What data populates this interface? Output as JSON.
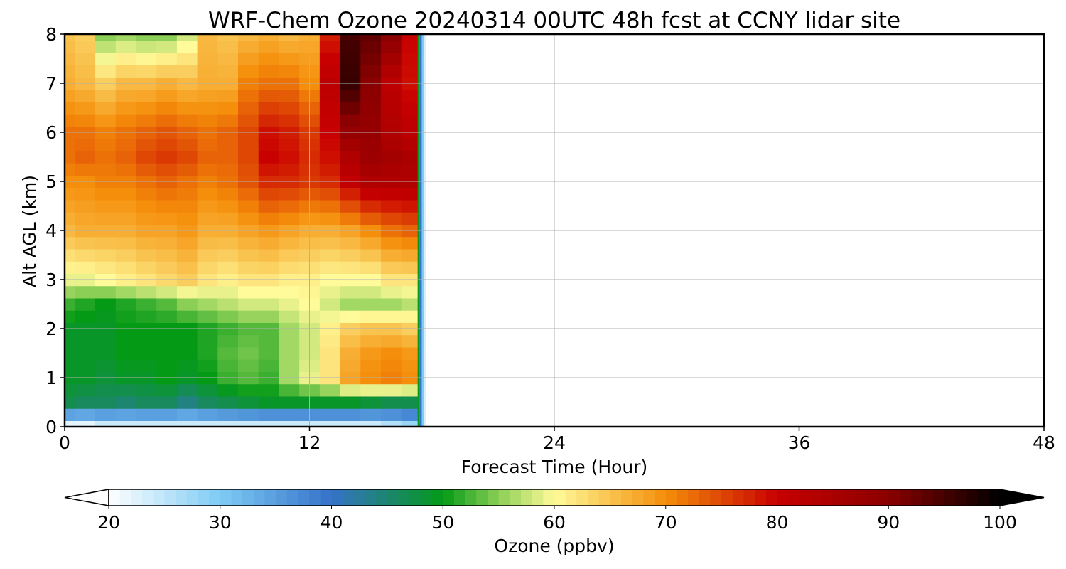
{
  "chart_data": {
    "type": "heatmap",
    "title": "WRF-Chem Ozone  20240314 00UTC 48h fcst at CCNY lidar site",
    "xlabel": "Forecast Time (Hour)",
    "ylabel": "Alt AGL (km)",
    "xlim": [
      0,
      48
    ],
    "ylim": [
      0,
      8
    ],
    "x_ticks": [
      0,
      12,
      24,
      36,
      48
    ],
    "y_ticks": [
      0,
      1,
      2,
      3,
      4,
      5,
      6,
      7,
      8
    ],
    "grid": true,
    "data_extent_hours": [
      0,
      17.3
    ],
    "x": [
      0,
      1,
      2,
      3,
      4,
      5,
      6,
      7,
      8,
      9,
      10,
      11,
      12,
      13,
      14,
      15,
      16,
      17
    ],
    "y": [
      0,
      0.25,
      0.5,
      0.75,
      1,
      1.25,
      1.5,
      1.75,
      2,
      2.25,
      2.5,
      2.75,
      3,
      3.25,
      3.5,
      3.75,
      4,
      4.25,
      4.5,
      4.75,
      5,
      5.25,
      5.5,
      5.75,
      6,
      6.25,
      6.5,
      6.75,
      7,
      7.25,
      7.5,
      7.75,
      8
    ],
    "z_approx_ppbv": {
      "0km": [
        22,
        22,
        24,
        24,
        24,
        24,
        24,
        24,
        24,
        24,
        24,
        24,
        24,
        24,
        24,
        24,
        26,
        28
      ],
      "0.5km": [
        47,
        46,
        46,
        45,
        46,
        46,
        44,
        46,
        47,
        48,
        49,
        49,
        49,
        49,
        49,
        48,
        47,
        47
      ],
      "1km": [
        49,
        49,
        48,
        49,
        49,
        50,
        49,
        50,
        52,
        53,
        52,
        56,
        59,
        62,
        68,
        70,
        71,
        70
      ],
      "1.5km": [
        49,
        49,
        49,
        50,
        50,
        50,
        50,
        51,
        53,
        54,
        53,
        56,
        58,
        62,
        67,
        69,
        70,
        69
      ],
      "2km": [
        49,
        49,
        49,
        50,
        50,
        50,
        50,
        51,
        52,
        53,
        53,
        56,
        58,
        61,
        64,
        65,
        65,
        64
      ],
      "2.5km": [
        52,
        51,
        50,
        51,
        52,
        53,
        55,
        56,
        57,
        58,
        58,
        59,
        60,
        58,
        56,
        56,
        56,
        57
      ],
      "3km": [
        59,
        59,
        60,
        61,
        62,
        63,
        64,
        62,
        61,
        62,
        62,
        61,
        61,
        60,
        60,
        60,
        62,
        62
      ],
      "4km": [
        66,
        67,
        67,
        67,
        68,
        68,
        69,
        67,
        67,
        68,
        69,
        68,
        67,
        67,
        68,
        70,
        72,
        73
      ],
      "5km": [
        70,
        70,
        71,
        71,
        72,
        73,
        72,
        71,
        72,
        74,
        77,
        77,
        76,
        77,
        81,
        84,
        84,
        84
      ],
      "5.5km": [
        72,
        73,
        72,
        73,
        75,
        76,
        75,
        73,
        73,
        75,
        80,
        79,
        77,
        79,
        84,
        87,
        86,
        85
      ],
      "6km": [
        72,
        72,
        71,
        72,
        73,
        74,
        73,
        72,
        73,
        75,
        79,
        78,
        76,
        80,
        88,
        88,
        84,
        82
      ],
      "7km": [
        67,
        66,
        64,
        66,
        66,
        67,
        66,
        67,
        67,
        71,
        72,
        72,
        70,
        82,
        96,
        90,
        82,
        79
      ],
      "8km": [
        65,
        64,
        55,
        56,
        55,
        55,
        58,
        66,
        65,
        66,
        67,
        66,
        67,
        78,
        95,
        93,
        90,
        80
      ]
    },
    "colorbar": {
      "label": "Ozone  (ppbv)",
      "ticks": [
        20,
        30,
        40,
        50,
        60,
        70,
        80,
        90,
        100
      ],
      "range": [
        20,
        100
      ],
      "extend": "both",
      "color_stops": [
        {
          "v": 20,
          "c": "#ffffff"
        },
        {
          "v": 30,
          "c": "#7ecbf4"
        },
        {
          "v": 40,
          "c": "#3572c9"
        },
        {
          "v": 50,
          "c": "#049a16"
        },
        {
          "v": 55,
          "c": "#8bcf56"
        },
        {
          "v": 60,
          "c": "#fffa9a"
        },
        {
          "v": 65,
          "c": "#f9c34f"
        },
        {
          "v": 70,
          "c": "#f58e0a"
        },
        {
          "v": 80,
          "c": "#c80000"
        },
        {
          "v": 90,
          "c": "#8b0000"
        },
        {
          "v": 100,
          "c": "#000000"
        }
      ]
    }
  }
}
